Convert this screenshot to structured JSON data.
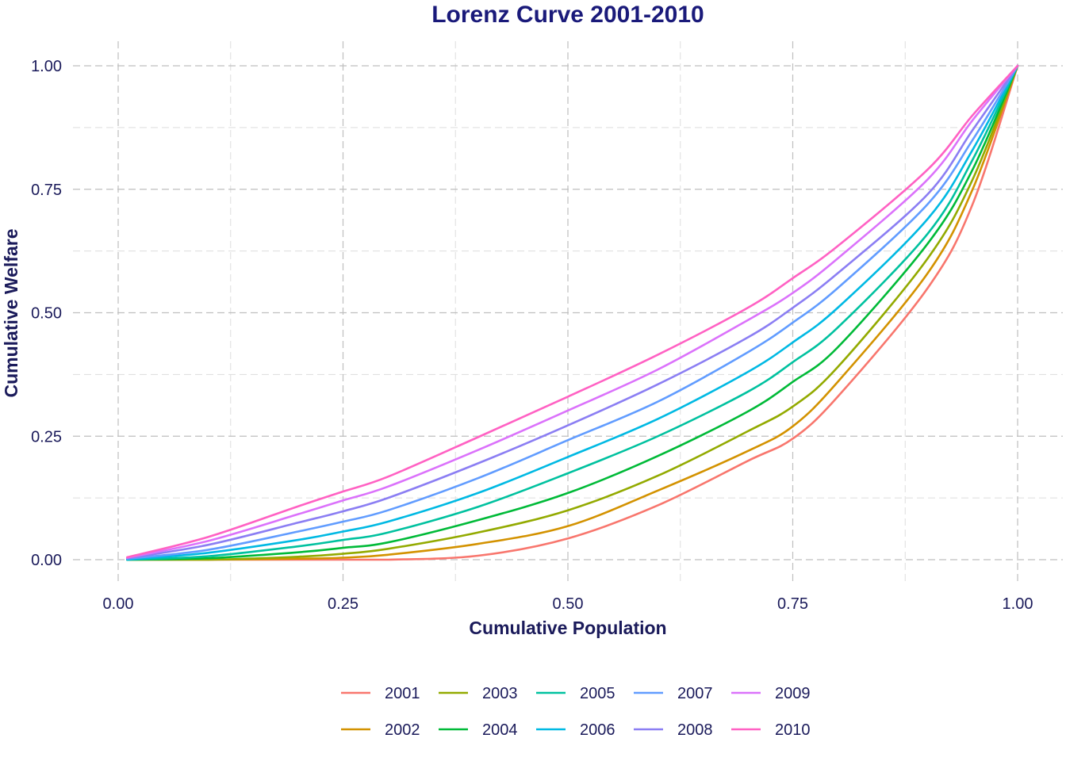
{
  "chart_data": {
    "type": "line",
    "title": "Lorenz Curve 2001-2010",
    "xlabel": "Cumulative Population",
    "ylabel": "Cumulative Welfare",
    "xlim": [
      0,
      1
    ],
    "ylim": [
      0,
      1
    ],
    "x_ticks": [
      0,
      0.25,
      0.5,
      0.75,
      1
    ],
    "x_tick_labels": [
      "0.00",
      "0.25",
      "0.50",
      "0.75",
      "1.00"
    ],
    "y_ticks": [
      0,
      0.25,
      0.5,
      0.75,
      1
    ],
    "y_tick_labels": [
      "0.00",
      "0.25",
      "0.50",
      "0.75",
      "1.00"
    ],
    "grid": true,
    "legend_position": "bottom",
    "x": [
      0.01,
      0.1,
      0.2,
      0.25,
      0.3,
      0.4,
      0.5,
      0.6,
      0.7,
      0.75,
      0.8,
      0.9,
      0.95,
      1.0
    ],
    "series": [
      {
        "name": "2001",
        "color": "#F8766D",
        "values": [
          0.0,
          0.0,
          0.0,
          0.0,
          0.0,
          0.008,
          0.043,
          0.11,
          0.2,
          0.245,
          0.33,
          0.55,
          0.72,
          1.0
        ]
      },
      {
        "name": "2002",
        "color": "#D39200",
        "values": [
          0.0,
          0.0,
          0.002,
          0.004,
          0.01,
          0.032,
          0.068,
          0.14,
          0.22,
          0.27,
          0.36,
          0.58,
          0.75,
          1.0
        ]
      },
      {
        "name": "2003",
        "color": "#93AA00",
        "values": [
          0.0,
          0.0,
          0.006,
          0.012,
          0.022,
          0.055,
          0.1,
          0.17,
          0.26,
          0.31,
          0.39,
          0.61,
          0.77,
          1.0
        ]
      },
      {
        "name": "2004",
        "color": "#00BA38",
        "values": [
          0.0,
          0.003,
          0.015,
          0.024,
          0.035,
          0.08,
          0.135,
          0.21,
          0.3,
          0.36,
          0.43,
          0.64,
          0.79,
          1.0
        ]
      },
      {
        "name": "2005",
        "color": "#00C19F",
        "values": [
          0.0,
          0.007,
          0.027,
          0.04,
          0.055,
          0.107,
          0.175,
          0.25,
          0.34,
          0.4,
          0.47,
          0.66,
          0.81,
          1.0
        ]
      },
      {
        "name": "2006",
        "color": "#00B9E3",
        "values": [
          0.0,
          0.014,
          0.04,
          0.057,
          0.077,
          0.135,
          0.208,
          0.285,
          0.38,
          0.44,
          0.51,
          0.69,
          0.83,
          1.0
        ]
      },
      {
        "name": "2007",
        "color": "#619CFF",
        "values": [
          0.002,
          0.02,
          0.057,
          0.077,
          0.1,
          0.165,
          0.242,
          0.32,
          0.42,
          0.48,
          0.55,
          0.72,
          0.85,
          1.0
        ]
      },
      {
        "name": "2008",
        "color": "#8B7EF3",
        "values": [
          0.003,
          0.03,
          0.075,
          0.098,
          0.125,
          0.195,
          0.272,
          0.355,
          0.45,
          0.51,
          0.58,
          0.74,
          0.87,
          1.0
        ]
      },
      {
        "name": "2009",
        "color": "#DB72FB",
        "values": [
          0.004,
          0.038,
          0.092,
          0.12,
          0.148,
          0.222,
          0.302,
          0.385,
          0.485,
          0.54,
          0.61,
          0.77,
          0.89,
          1.0
        ]
      },
      {
        "name": "2010",
        "color": "#FF61C3",
        "values": [
          0.005,
          0.046,
          0.108,
          0.138,
          0.168,
          0.248,
          0.33,
          0.415,
          0.51,
          0.57,
          0.635,
          0.79,
          0.9,
          1.0
        ]
      }
    ]
  }
}
